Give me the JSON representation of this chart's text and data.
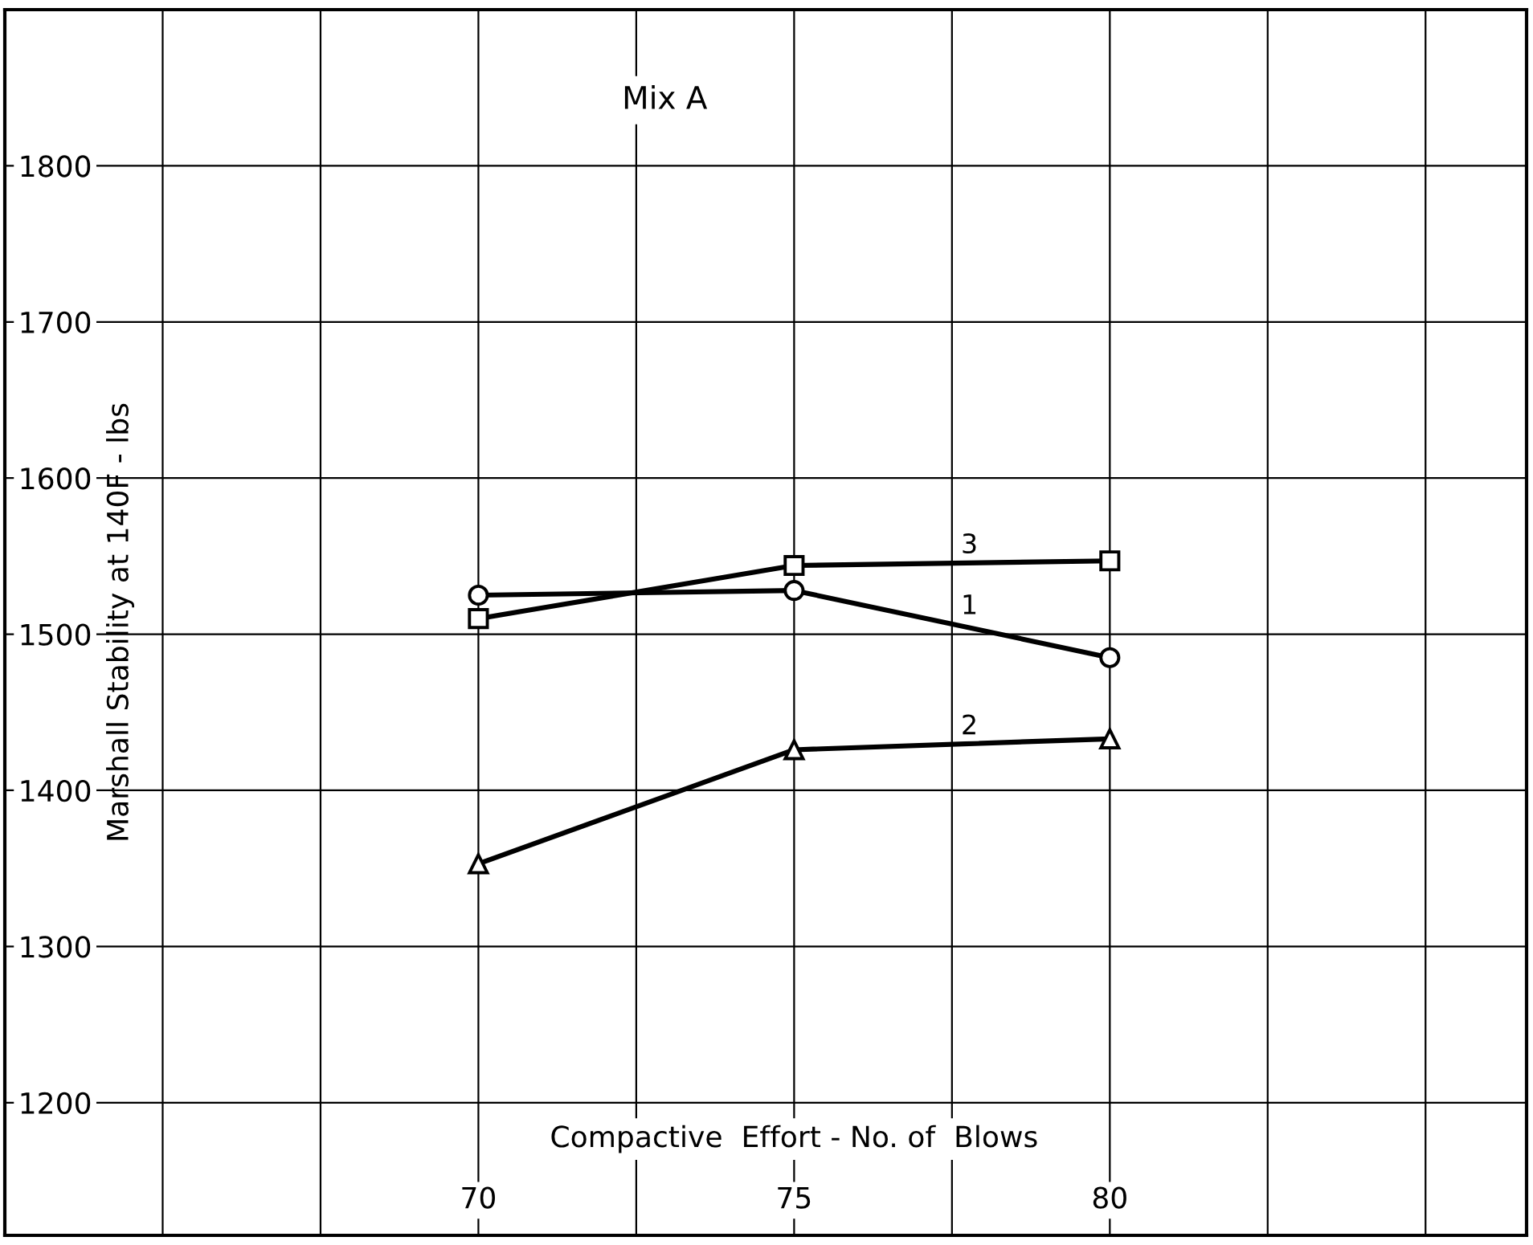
{
  "chart_data": {
    "type": "line",
    "title": "Mix A",
    "xlabel": "Compactive  Effort - No. of  Blows",
    "ylabel": "Marshall Stability at 140F - lbs",
    "x": [
      70,
      75,
      80
    ],
    "series": [
      {
        "name": "1",
        "color": "#000000",
        "marker": "circle",
        "values": [
          1525,
          1528,
          1485
        ]
      },
      {
        "name": "2",
        "color": "#000000",
        "marker": "triangle",
        "values": [
          1353,
          1426,
          1433
        ]
      },
      {
        "name": "3",
        "color": "#000000",
        "marker": "square",
        "values": [
          1510,
          1544,
          1547
        ]
      }
    ],
    "xlim": [
      62.5,
      86.6
    ],
    "ylim": [
      1115,
      1900
    ],
    "xticks": [
      {
        "value": 65,
        "label": null
      },
      {
        "value": 67.5,
        "label": null
      },
      70,
      {
        "value": 72.5,
        "label": null
      },
      75,
      {
        "value": 77.5,
        "label": null
      },
      80,
      {
        "value": 82.5,
        "label": null
      },
      {
        "value": 85,
        "label": null
      }
    ],
    "yticks": [
      1200,
      1300,
      1400,
      1500,
      1600,
      1700,
      1800
    ],
    "grid": true,
    "line_style": "solid",
    "legend": false
  }
}
